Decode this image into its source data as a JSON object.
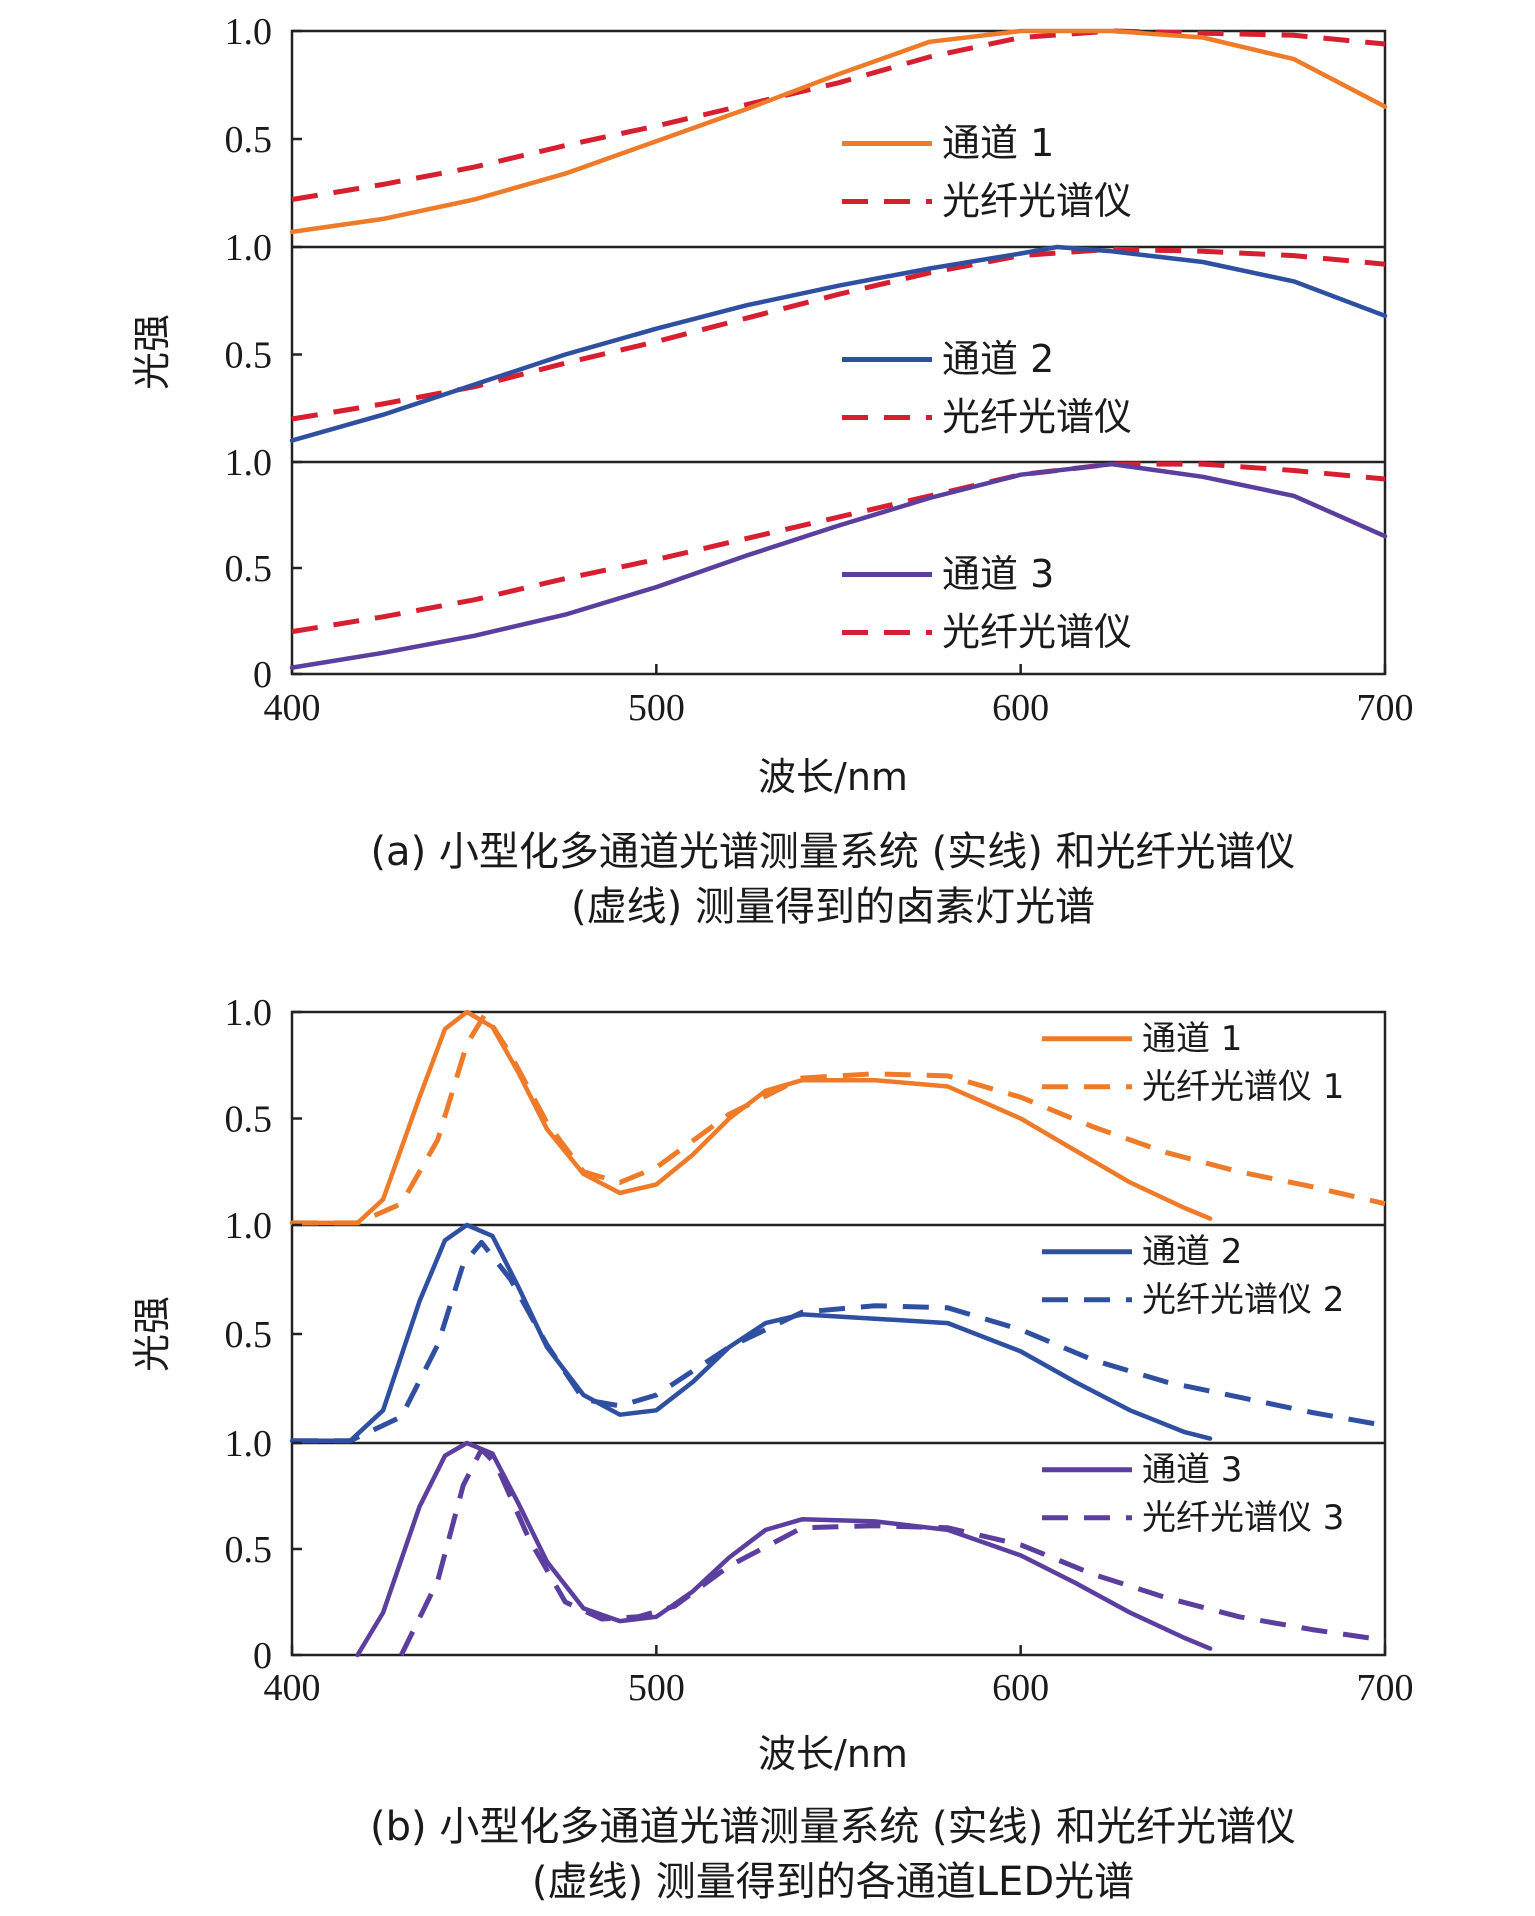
{
  "chart_data": [
    {
      "type": "line",
      "ylabel": "光强",
      "xlabel": "波长/nm",
      "xlim": [
        400,
        700
      ],
      "x_ticks": [
        "400",
        "500",
        "600",
        "700"
      ],
      "y_ticks_top": [
        "1.0",
        "0.5"
      ],
      "y_ticks_bottom": [
        "1.0",
        "0.5",
        "0"
      ],
      "caption_line1": "(a) 小型化多通道光谱测量系统 (实线) 和光纤光谱仪",
      "caption_line2": "(虚线) 测量得到的卤素灯光谱",
      "panels": [
        {
          "ylim": [
            0,
            1
          ],
          "color": "#ee7b2a",
          "legend_solid": "通道 1",
          "legend_dashed": "光纤光谱仪",
          "solid_x": [
            400,
            425,
            450,
            475,
            500,
            525,
            550,
            575,
            600,
            625,
            650,
            675,
            700
          ],
          "solid_y": [
            0.07,
            0.13,
            0.22,
            0.34,
            0.49,
            0.64,
            0.8,
            0.95,
            1.0,
            1.0,
            0.97,
            0.87,
            0.65
          ],
          "dashed_x": [
            400,
            425,
            450,
            475,
            500,
            525,
            550,
            575,
            600,
            625,
            650,
            675,
            700
          ],
          "dashed_y": [
            0.22,
            0.29,
            0.37,
            0.47,
            0.56,
            0.66,
            0.76,
            0.88,
            0.97,
            1.0,
            0.99,
            0.98,
            0.94
          ]
        },
        {
          "ylim": [
            0,
            1
          ],
          "color": "#2f4fa1",
          "legend_solid": "通道 2",
          "legend_dashed": "光纤光谱仪",
          "solid_x": [
            400,
            425,
            450,
            475,
            500,
            525,
            550,
            575,
            600,
            610,
            625,
            650,
            675,
            700
          ],
          "solid_y": [
            0.1,
            0.22,
            0.36,
            0.5,
            0.62,
            0.73,
            0.82,
            0.9,
            0.97,
            1.0,
            0.98,
            0.93,
            0.84,
            0.68
          ],
          "dashed_x": [
            400,
            425,
            450,
            475,
            500,
            525,
            550,
            575,
            600,
            625,
            650,
            675,
            700
          ],
          "dashed_y": [
            0.2,
            0.27,
            0.35,
            0.46,
            0.56,
            0.67,
            0.78,
            0.88,
            0.96,
            0.99,
            0.98,
            0.96,
            0.92
          ]
        },
        {
          "ylim": [
            0,
            1
          ],
          "color": "#5b3e9e",
          "legend_solid": "通道 3",
          "legend_dashed": "光纤光谱仪",
          "solid_x": [
            400,
            425,
            450,
            475,
            500,
            525,
            550,
            575,
            600,
            625,
            650,
            675,
            700
          ],
          "solid_y": [
            0.03,
            0.1,
            0.18,
            0.28,
            0.41,
            0.56,
            0.7,
            0.83,
            0.94,
            0.99,
            0.93,
            0.84,
            0.65
          ],
          "dashed_x": [
            400,
            425,
            450,
            475,
            500,
            525,
            550,
            575,
            600,
            625,
            650,
            675,
            700
          ],
          "dashed_y": [
            0.2,
            0.27,
            0.35,
            0.45,
            0.54,
            0.64,
            0.74,
            0.84,
            0.94,
            0.99,
            0.99,
            0.96,
            0.92
          ]
        }
      ]
    },
    {
      "type": "line",
      "ylabel": "光强",
      "xlabel": "波长/nm",
      "xlim": [
        400,
        700
      ],
      "x_ticks": [
        "400",
        "500",
        "600",
        "700"
      ],
      "y_ticks_top": [
        "1.0",
        "0.5"
      ],
      "y_ticks_bottom": [
        "1.0",
        "0.5",
        "0"
      ],
      "caption_line1": "(b) 小型化多通道光谱测量系统 (实线) 和光纤光谱仪",
      "caption_line2": "(虚线) 测量得到的各通道LED光谱",
      "panels": [
        {
          "ylim": [
            0,
            1
          ],
          "color": "#ee7b2a",
          "legend_solid": "通道 1",
          "legend_dashed": "光纤光谱仪 1",
          "solid_x": [
            400,
            418,
            425,
            435,
            442,
            448,
            455,
            462,
            470,
            480,
            490,
            500,
            510,
            520,
            530,
            540,
            560,
            580,
            600,
            615,
            630,
            645,
            652
          ],
          "solid_y": [
            0.01,
            0.01,
            0.12,
            0.6,
            0.92,
            1.0,
            0.93,
            0.72,
            0.45,
            0.24,
            0.15,
            0.19,
            0.33,
            0.5,
            0.63,
            0.68,
            0.68,
            0.65,
            0.5,
            0.35,
            0.2,
            0.08,
            0.03
          ],
          "dashed_x": [
            400,
            418,
            430,
            440,
            448,
            453,
            460,
            470,
            480,
            490,
            500,
            520,
            540,
            560,
            580,
            600,
            620,
            640,
            660,
            680,
            700
          ],
          "dashed_y": [
            0.01,
            0.01,
            0.1,
            0.4,
            0.85,
            0.99,
            0.8,
            0.48,
            0.25,
            0.2,
            0.27,
            0.52,
            0.69,
            0.71,
            0.7,
            0.6,
            0.46,
            0.34,
            0.25,
            0.18,
            0.1
          ]
        },
        {
          "ylim": [
            0,
            1
          ],
          "color": "#2f4fa1",
          "legend_solid": "通道 2",
          "legend_dashed": "光纤光谱仪 2",
          "solid_x": [
            400,
            416,
            425,
            435,
            442,
            448,
            455,
            462,
            470,
            480,
            490,
            500,
            510,
            520,
            530,
            540,
            560,
            580,
            600,
            615,
            630,
            645,
            652
          ],
          "solid_y": [
            0.01,
            0.01,
            0.15,
            0.65,
            0.93,
            1.0,
            0.95,
            0.72,
            0.44,
            0.22,
            0.13,
            0.15,
            0.28,
            0.44,
            0.55,
            0.59,
            0.57,
            0.55,
            0.42,
            0.28,
            0.15,
            0.05,
            0.02
          ],
          "dashed_x": [
            400,
            416,
            430,
            440,
            447,
            452,
            460,
            470,
            480,
            490,
            500,
            520,
            540,
            560,
            580,
            600,
            620,
            640,
            660,
            680,
            700
          ],
          "dashed_y": [
            0.01,
            0.01,
            0.12,
            0.45,
            0.82,
            0.92,
            0.75,
            0.45,
            0.2,
            0.17,
            0.22,
            0.44,
            0.6,
            0.63,
            0.62,
            0.52,
            0.38,
            0.28,
            0.21,
            0.14,
            0.08
          ]
        },
        {
          "ylim": [
            0,
            1
          ],
          "color": "#5b3e9e",
          "legend_solid": "通道 3",
          "legend_dashed": "光纤光谱仪 3",
          "solid_x": [
            418,
            425,
            435,
            442,
            448,
            455,
            462,
            470,
            480,
            490,
            500,
            510,
            520,
            530,
            540,
            560,
            580,
            600,
            615,
            630,
            645,
            652
          ],
          "solid_y": [
            0.0,
            0.2,
            0.7,
            0.94,
            1.0,
            0.95,
            0.72,
            0.44,
            0.22,
            0.16,
            0.18,
            0.3,
            0.46,
            0.59,
            0.64,
            0.63,
            0.59,
            0.47,
            0.34,
            0.2,
            0.08,
            0.03
          ],
          "dashed_x": [
            430,
            440,
            447,
            452,
            456,
            465,
            475,
            485,
            495,
            505,
            520,
            540,
            560,
            580,
            600,
            620,
            640,
            660,
            680,
            700
          ],
          "dashed_y": [
            0.0,
            0.35,
            0.8,
            0.97,
            0.9,
            0.55,
            0.25,
            0.17,
            0.18,
            0.23,
            0.42,
            0.6,
            0.61,
            0.6,
            0.52,
            0.38,
            0.27,
            0.18,
            0.12,
            0.07
          ]
        }
      ]
    }
  ]
}
